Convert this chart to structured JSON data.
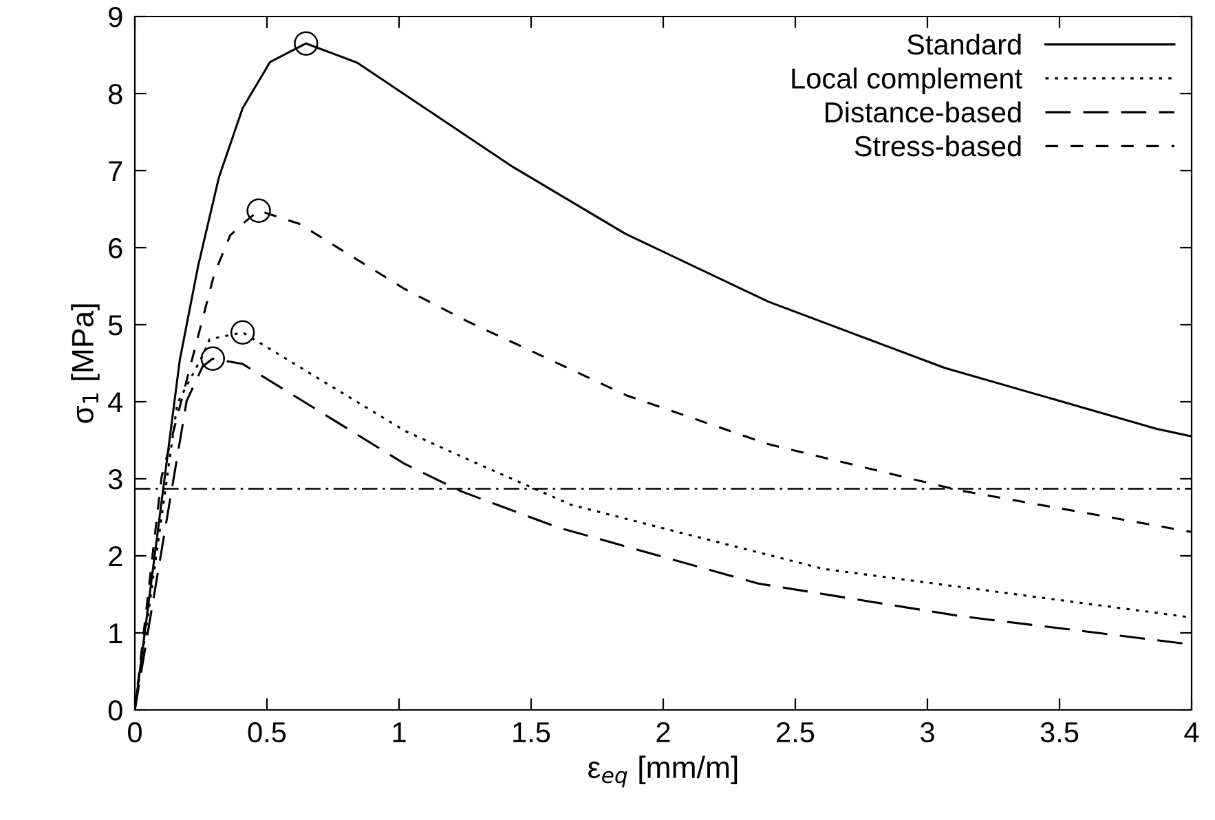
{
  "chart_data": {
    "type": "line",
    "xlabel": "ε$_{eq}$ [mm/m]",
    "ylabel": "σ$_{1}$ [MPa]",
    "xlim": [
      0,
      4
    ],
    "ylim": [
      0,
      9
    ],
    "xticks": [
      0,
      0.5,
      1,
      1.5,
      2,
      2.5,
      3,
      3.5,
      4
    ],
    "yticks": [
      0,
      1,
      2,
      3,
      4,
      5,
      6,
      7,
      8,
      9
    ],
    "grid": false,
    "legend": "top right",
    "marker": "none",
    "ref_lines": [
      {
        "axis": "y",
        "value": 2.87,
        "color": "#000000",
        "line_style": "dashdot"
      }
    ],
    "series": [
      {
        "name": "Standard",
        "color": "#000000",
        "line_style": "solid",
        "x": [
          0,
          0.17,
          0.24,
          0.318,
          0.408,
          0.512,
          0.648,
          0.842,
          1.43,
          1.857,
          2.397,
          3.065,
          3.866,
          4.0
        ],
        "values": [
          0,
          4.54,
          5.77,
          6.91,
          7.81,
          8.41,
          8.65,
          8.4,
          7.05,
          6.18,
          5.3,
          4.44,
          3.65,
          3.55
        ]
      },
      {
        "name": "Local complement",
        "color": "#000000",
        "line_style": "dotted",
        "x": [
          0,
          0.161,
          0.257,
          0.283,
          0.408,
          1.023,
          1.255,
          1.653,
          2.607,
          4.0
        ],
        "values": [
          0,
          3.98,
          4.6,
          4.81,
          4.9,
          3.62,
          3.26,
          2.66,
          1.83,
          1.2
        ]
      },
      {
        "name": "Distance-based",
        "color": "#000000",
        "line_style": "dashed",
        "x": [
          0,
          0.196,
          0.257,
          0.295,
          0.408,
          1.023,
          1.233,
          1.6,
          2.36,
          3.12,
          4.0
        ],
        "values": [
          0,
          4.01,
          4.46,
          4.56,
          4.49,
          3.19,
          2.84,
          2.37,
          1.64,
          1.22,
          0.85
        ]
      },
      {
        "name": "Stress-based",
        "color": "#000000",
        "line_style": "dashed",
        "x": [
          0,
          0.101,
          0.3,
          0.361,
          0.408,
          0.469,
          0.622,
          1.023,
          1.255,
          1.863,
          2.397,
          3.12,
          4.0
        ],
        "values": [
          0,
          3.02,
          5.65,
          6.16,
          6.31,
          6.48,
          6.31,
          5.46,
          5.05,
          4.08,
          3.45,
          2.85,
          2.31
        ]
      },
      {
        "type": "scatter",
        "marker": "circle",
        "color": "#000000",
        "x": [
          0.648,
          0.469,
          0.408,
          0.295
        ],
        "values": [
          8.65,
          6.48,
          4.9,
          4.56
        ]
      }
    ]
  }
}
